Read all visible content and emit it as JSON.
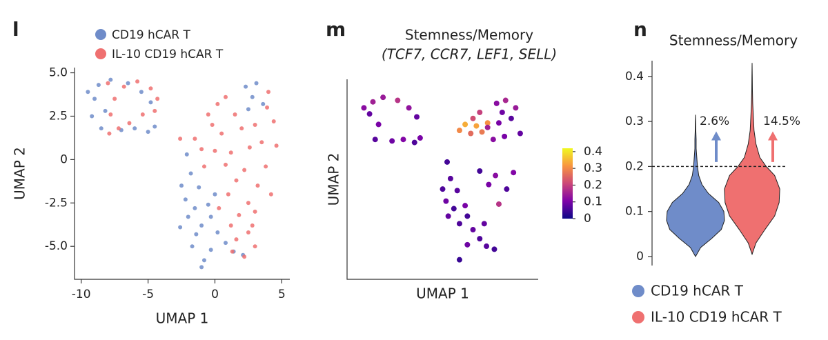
{
  "chart_data": [
    {
      "type": "scatter",
      "panel_label": "l",
      "xlabel": "UMAP 1",
      "ylabel": "UMAP 2",
      "xlim": [
        -10.5,
        5.6
      ],
      "ylim": [
        -6.9,
        5.3
      ],
      "xticks": [
        -10,
        -5,
        0,
        5
      ],
      "yticks": [
        {
          "value": 5,
          "label": "5.0"
        },
        2.5,
        0,
        -2.5,
        {
          "value": -5,
          "label": "-5.0"
        }
      ],
      "legend": "top-left",
      "series": [
        {
          "name": "CD19 hCAR T",
          "color": "#6f8cc9",
          "x": [
            -9.5,
            -9,
            -8.7,
            -8.2,
            -8.5,
            -7.8,
            -7,
            -6,
            -5,
            -4.5,
            -6.5,
            -5.5,
            -4.8,
            -9.2,
            2.3,
            2.8,
            3.1,
            2.5,
            3.6,
            -2.1,
            -1.8,
            -2.5,
            -2.2,
            -1.5,
            -2,
            -1,
            -0.5,
            -1.2,
            -0.3,
            0.2,
            0.8,
            -0.3,
            -1,
            -0.8,
            1.4,
            2.1,
            -1.4,
            0,
            -2.6,
            -1.7
          ],
          "y": [
            3.9,
            3.5,
            4.3,
            2.8,
            1.8,
            4.6,
            1.7,
            1.8,
            1.6,
            1.9,
            4.4,
            3.9,
            3.3,
            2.5,
            4.2,
            3.6,
            4.4,
            2.9,
            3.2,
            0.3,
            -0.8,
            -1.5,
            -2.3,
            -2.8,
            -3.3,
            -3.8,
            -2.6,
            -1.6,
            -3.3,
            -4.2,
            -4.8,
            -5.2,
            -6.2,
            -5.8,
            -5.3,
            -5.5,
            -4.3,
            -2,
            -3.9,
            -5
          ]
        },
        {
          "name": "IL-10 CD19 hCAR T",
          "color": "#ef7070",
          "x": [
            -8,
            -7.5,
            -7.8,
            -7.2,
            -6.4,
            -5.4,
            -4.5,
            -4.8,
            -5.8,
            -6.8,
            -4.3,
            -7.9,
            -1.5,
            -1,
            -0.5,
            0.2,
            0.8,
            1.5,
            2,
            3,
            4,
            4.4,
            4.6,
            3.8,
            3.2,
            2.5,
            1.6,
            0.8,
            0,
            -0.8,
            0.5,
            1.2,
            2.6,
            3.5,
            2.2,
            1,
            0.3,
            1.8,
            3,
            -0.2,
            1.2,
            2.5,
            1.6,
            2.2,
            3,
            1.3,
            2.8,
            4.2,
            -2.6,
            3.9
          ],
          "y": [
            4.4,
            3.5,
            2.6,
            1.8,
            2.1,
            2.6,
            2.8,
            4.1,
            4.5,
            4.2,
            3.5,
            1.5,
            1.2,
            0.6,
            2.6,
            3.2,
            3.6,
            2.6,
            1.8,
            2,
            3.9,
            2.2,
            0.8,
            -0.4,
            -1.5,
            -2.5,
            -1.2,
            -0.3,
            0.5,
            -0.4,
            1.5,
            0.4,
            0.7,
            1,
            -0.6,
            -2,
            -2.8,
            -3.2,
            -3,
            2,
            -3.8,
            -4.2,
            -4.6,
            -5.6,
            -5,
            -5.3,
            -3.8,
            -2,
            1.2,
            3
          ]
        }
      ]
    },
    {
      "type": "scatter",
      "panel_label": "m",
      "title": "Stemness/Memory",
      "subtitle": "(TCF7, CCR7, LEF1, SELL)",
      "xlabel": "UMAP 1",
      "ylabel": "UMAP 2",
      "xlim": [
        -11,
        6
      ],
      "ylim": [
        -7.5,
        5.8
      ],
      "colormap": "plasma",
      "clim": [
        0,
        0.42
      ],
      "cbar_ticks": [
        0,
        0.1,
        0.2,
        0.3,
        0.4
      ],
      "x": [
        -9.5,
        -9,
        -8.7,
        -8.2,
        -8.5,
        -7.8,
        -7,
        -6,
        -5,
        -4.5,
        -6.5,
        -5.5,
        -4.8,
        2.3,
        2.8,
        3.1,
        2.5,
        3.6,
        -2.1,
        -1.8,
        -2.5,
        -2.2,
        -1.5,
        -2,
        -1,
        -0.5,
        -1.2,
        -0.3,
        0.2,
        0.8,
        -0.3,
        -1,
        1.4,
        2.1,
        -1,
        -0.5,
        0,
        0.5,
        1,
        1.5,
        0.2,
        0.8,
        1.5,
        2,
        3,
        4,
        4.4,
        3.8,
        3.2,
        2.5,
        1.6,
        0.8,
        1.2,
        2.2
      ],
      "y": [
        3.9,
        3.5,
        4.3,
        2.8,
        1.8,
        4.6,
        1.7,
        1.8,
        1.6,
        1.9,
        4.4,
        3.9,
        3.3,
        4.2,
        3.6,
        4.4,
        2.9,
        3.2,
        0.3,
        -0.8,
        -1.5,
        -2.3,
        -2.8,
        -3.3,
        -3.8,
        -2.6,
        -1.6,
        -3.3,
        -4.2,
        -4.8,
        -5.2,
        -6.2,
        -5.3,
        -5.5,
        2.4,
        2.8,
        2.2,
        2.7,
        2.3,
        2.9,
        3.2,
        3.6,
        2.6,
        1.8,
        2,
        3.9,
        2.2,
        -0.4,
        -1.5,
        -2.5,
        -1.2,
        -0.3,
        -3.8,
        -0.6
      ],
      "values": [
        0.12,
        0.08,
        0.15,
        0.1,
        0.07,
        0.14,
        0.09,
        0.11,
        0.06,
        0.1,
        0.18,
        0.13,
        0.08,
        0.12,
        0.09,
        0.16,
        0.1,
        0.07,
        0.05,
        0.07,
        0.06,
        0.09,
        0.05,
        0.08,
        0.06,
        0.1,
        0.07,
        0.05,
        0.08,
        0.06,
        0.09,
        0.04,
        0.07,
        0.05,
        0.3,
        0.34,
        0.26,
        0.33,
        0.28,
        0.31,
        0.22,
        0.2,
        0.15,
        0.12,
        0.1,
        0.14,
        0.08,
        0.11,
        0.06,
        0.18,
        0.1,
        0.05,
        0.08,
        0.12
      ]
    },
    {
      "type": "violin",
      "panel_label": "n",
      "title": "Stemness/Memory",
      "ylim": [
        -0.02,
        0.435
      ],
      "yticks": [
        0,
        0.1,
        0.2,
        0.3,
        0.4
      ],
      "threshold": 0.2,
      "legend": "bottom",
      "series": [
        {
          "name": "CD19 hCAR T",
          "color": "#6f8cc9",
          "density_y": [
            0,
            0.02,
            0.04,
            0.06,
            0.08,
            0.1,
            0.12,
            0.14,
            0.16,
            0.18,
            0.2,
            0.22,
            0.24,
            0.26,
            0.28,
            0.3,
            0.315
          ],
          "density": [
            0,
            0.08,
            0.25,
            0.4,
            0.45,
            0.44,
            0.36,
            0.2,
            0.1,
            0.05,
            0.03,
            0.02,
            0.01,
            0.01,
            0.005,
            0.003,
            0
          ],
          "above_threshold": 2.6,
          "above_threshold_label": "2.6%"
        },
        {
          "name": "IL-10 CD19 hCAR T",
          "color": "#ef7070",
          "density_y": [
            0.005,
            0.03,
            0.06,
            0.09,
            0.12,
            0.15,
            0.18,
            0.2,
            0.22,
            0.25,
            0.28,
            0.31,
            0.34,
            0.37,
            0.4,
            0.43
          ],
          "density": [
            0,
            0.06,
            0.2,
            0.35,
            0.42,
            0.43,
            0.35,
            0.22,
            0.12,
            0.06,
            0.03,
            0.02,
            0.01,
            0.005,
            0.003,
            0
          ],
          "above_threshold": 14.5,
          "above_threshold_label": "14.5%"
        }
      ]
    }
  ]
}
